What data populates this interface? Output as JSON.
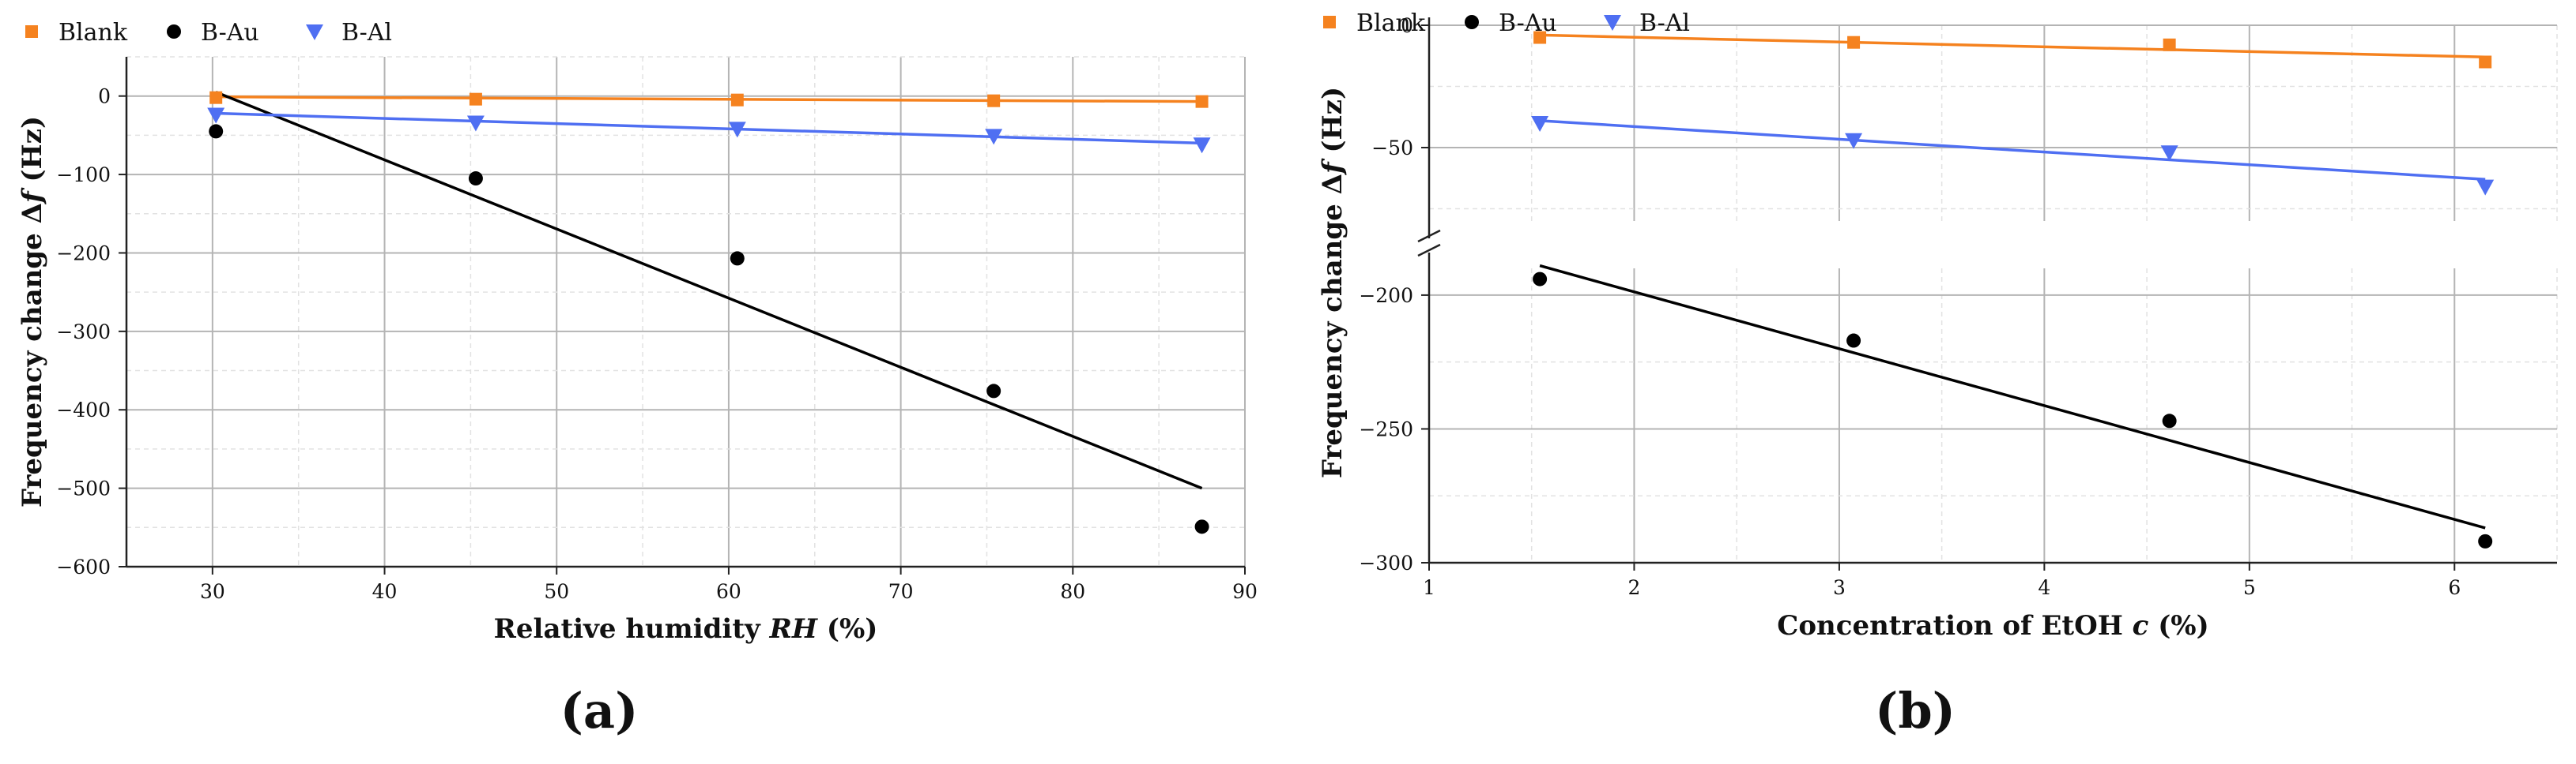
{
  "chart_data": [
    {
      "type": "scatter",
      "panel_label": "(a)",
      "xlabel": "Relative humidity RH (%)",
      "xlabel_parts": [
        "Relative humidity ",
        "RH",
        " (%)"
      ],
      "ylabel": "Frequency change Δf (Hz)",
      "ylabel_parts": [
        "Frequency change Δ",
        "f",
        " (Hz)"
      ],
      "xlim": [
        25,
        90
      ],
      "ylim": [
        -600,
        50
      ],
      "xticks": [
        30,
        40,
        50,
        60,
        70,
        80,
        90
      ],
      "yticks": [
        0,
        -100,
        -200,
        -300,
        -400,
        -500,
        -600
      ],
      "xtick_labels": [
        "30",
        "40",
        "50",
        "60",
        "70",
        "80",
        "90"
      ],
      "ytick_labels": [
        "0",
        "−100",
        "−200",
        "−300",
        "−400",
        "−500",
        "−600"
      ],
      "grid": true,
      "legend_position": "top-left",
      "series": [
        {
          "name": "Blank",
          "marker": "square",
          "color": "#f5821f",
          "x": [
            30.2,
            45.3,
            60.5,
            75.4,
            87.5
          ],
          "y": [
            -2,
            -4,
            -5,
            -6,
            -7
          ],
          "fit": {
            "x": [
              30.2,
              87.5
            ],
            "y": [
              -1,
              -7
            ]
          }
        },
        {
          "name": "B-Au",
          "marker": "circle",
          "color": "#000000",
          "x": [
            30.2,
            45.3,
            60.5,
            75.4,
            87.5
          ],
          "y": [
            -45,
            -105,
            -207,
            -376,
            -549
          ],
          "fit": {
            "x": [
              30.2,
              87.5
            ],
            "y": [
              5,
              -500
            ]
          }
        },
        {
          "name": "B-Al",
          "marker": "triangle-down",
          "color": "#4f6ff2",
          "x": [
            30.2,
            45.3,
            60.5,
            75.4,
            87.5
          ],
          "y": [
            -24,
            -34,
            -42,
            -51,
            -62
          ],
          "fit": {
            "x": [
              30.2,
              87.5
            ],
            "y": [
              -22,
              -60
            ]
          }
        }
      ]
    },
    {
      "type": "scatter",
      "panel_label": "(b)",
      "xlabel": "Concentration of EtOH c (%)",
      "xlabel_parts": [
        "Concentration of EtOH ",
        "c",
        " (%)"
      ],
      "ylabel": "Frequency change Δf (Hz)",
      "ylabel_parts": [
        "Frequency change Δ",
        "f",
        " (Hz)"
      ],
      "xlim": [
        1,
        6.5
      ],
      "y_broken": true,
      "ylim_upper": [
        -80,
        0
      ],
      "ylim_lower": [
        -300,
        -190
      ],
      "xticks": [
        1,
        2,
        3,
        4,
        5,
        6
      ],
      "xtick_labels": [
        "1",
        "2",
        "3",
        "4",
        "5",
        "6"
      ],
      "yticks_upper": [
        0,
        -50
      ],
      "ytick_labels_upper": [
        "0",
        "−50"
      ],
      "yticks_lower": [
        -200,
        -250,
        -300
      ],
      "ytick_labels_lower": [
        "−200",
        "−250",
        "−300"
      ],
      "grid": true,
      "legend_position": "top-left",
      "series": [
        {
          "name": "Blank",
          "marker": "square",
          "color": "#f5821f",
          "x": [
            1.54,
            3.07,
            4.61,
            6.15
          ],
          "y": [
            -5,
            -7,
            -8,
            -15
          ],
          "fit": {
            "x": [
              1.54,
              6.15
            ],
            "y": [
              -4,
              -13
            ]
          }
        },
        {
          "name": "B-Au",
          "marker": "circle",
          "color": "#000000",
          "x": [
            1.54,
            3.07,
            4.61,
            6.15
          ],
          "y": [
            -194,
            -217,
            -247,
            -292
          ],
          "fit": {
            "x": [
              1.54,
              6.15
            ],
            "y": [
              -189,
              -287
            ]
          }
        },
        {
          "name": "B-Al",
          "marker": "triangle-down",
          "color": "#4f6ff2",
          "x": [
            1.54,
            3.07,
            4.61,
            6.15
          ],
          "y": [
            -40,
            -47,
            -52,
            -66
          ],
          "fit": {
            "x": [
              1.54,
              6.15
            ],
            "y": [
              -39,
              -63
            ]
          }
        }
      ]
    }
  ]
}
